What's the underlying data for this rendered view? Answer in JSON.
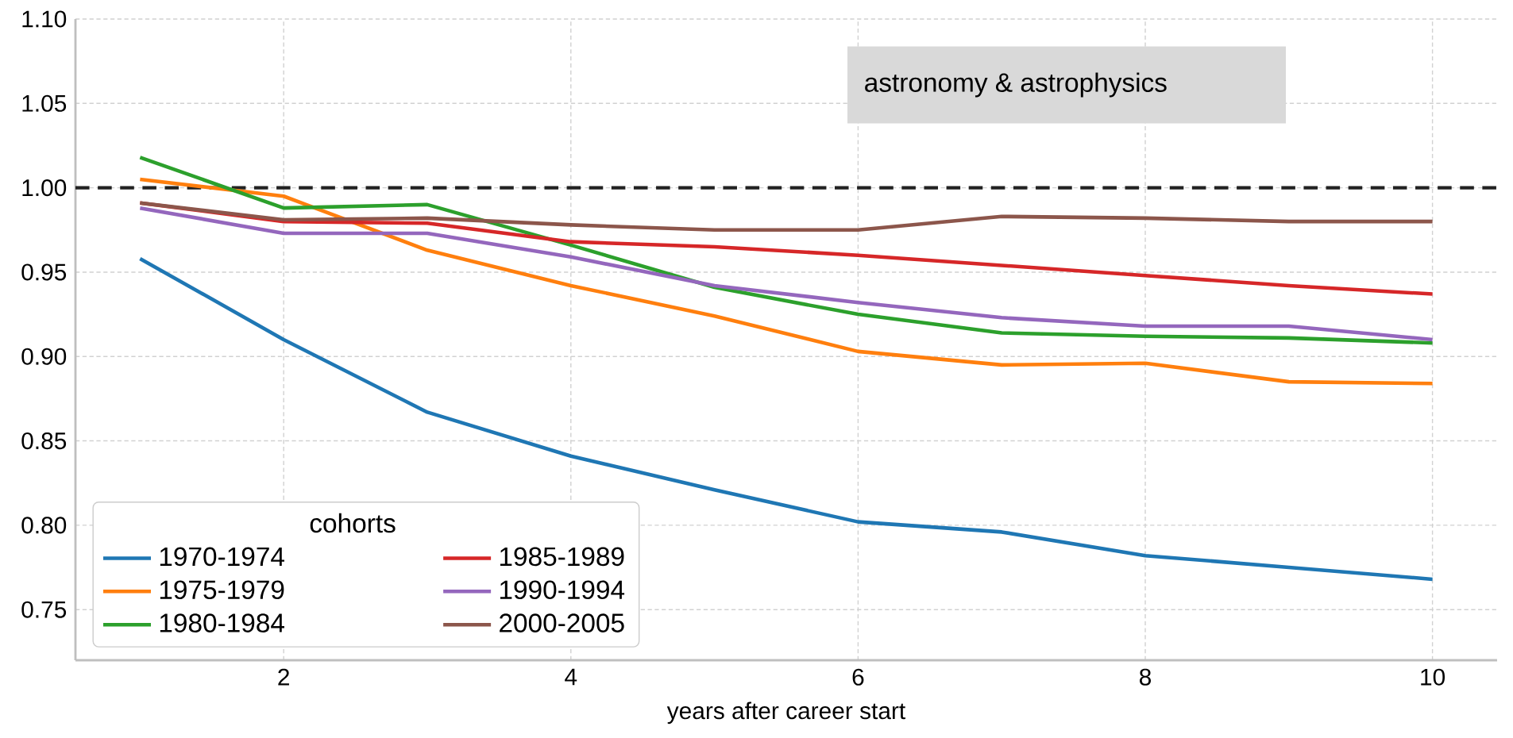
{
  "chart_data": {
    "type": "line",
    "xlabel": "years after career start",
    "legend_title": "cohorts",
    "legend": "bottom left",
    "grid": true,
    "x": [
      1,
      2,
      3,
      4,
      5,
      6,
      7,
      8,
      9,
      10
    ],
    "xlim": [
      0.55,
      10.45
    ],
    "xticks": [
      2,
      4,
      6,
      8,
      10
    ],
    "ylim": [
      0.72,
      1.1
    ],
    "yticks": [
      {
        "value": 0.75,
        "label": "0.75"
      },
      {
        "value": 0.8,
        "label": "0.80"
      },
      {
        "value": 0.85,
        "label": "0.85"
      },
      {
        "value": 0.9,
        "label": "0.90"
      },
      {
        "value": 0.95,
        "label": "0.95"
      },
      {
        "value": 1.0,
        "label": "1.00"
      },
      {
        "value": 1.05,
        "label": "1.05"
      },
      {
        "value": 1.1,
        "label": "1.10"
      }
    ],
    "ref_lines": [
      {
        "axis": "y",
        "value": 1.0,
        "color": "#222222",
        "line_style": "dashed"
      }
    ],
    "annotations": [
      "astronomy & astrophysics"
    ],
    "series": [
      {
        "name": "1970-1974",
        "color": "#1f77b4",
        "values": [
          0.958,
          0.91,
          0.867,
          0.841,
          0.821,
          0.802,
          0.796,
          0.782,
          0.775,
          0.768
        ]
      },
      {
        "name": "1975-1979",
        "color": "#ff7f0e",
        "values": [
          1.005,
          0.995,
          0.963,
          0.942,
          0.924,
          0.903,
          0.895,
          0.896,
          0.885,
          0.884
        ]
      },
      {
        "name": "1980-1984",
        "color": "#2ca02c",
        "values": [
          1.018,
          0.988,
          0.99,
          0.966,
          0.941,
          0.925,
          0.914,
          0.912,
          0.911,
          0.908
        ]
      },
      {
        "name": "1985-1989",
        "color": "#d62728",
        "values": [
          0.991,
          0.98,
          0.979,
          0.968,
          0.965,
          0.96,
          0.954,
          0.948,
          0.942,
          0.937
        ]
      },
      {
        "name": "1990-1994",
        "color": "#9467bd",
        "values": [
          0.988,
          0.973,
          0.973,
          0.959,
          0.942,
          0.932,
          0.923,
          0.918,
          0.918,
          0.91
        ]
      },
      {
        "name": "2000-2005",
        "color": "#8c564b",
        "values": [
          0.991,
          0.981,
          0.982,
          0.978,
          0.975,
          0.975,
          0.983,
          0.982,
          0.98,
          0.98
        ]
      }
    ]
  }
}
